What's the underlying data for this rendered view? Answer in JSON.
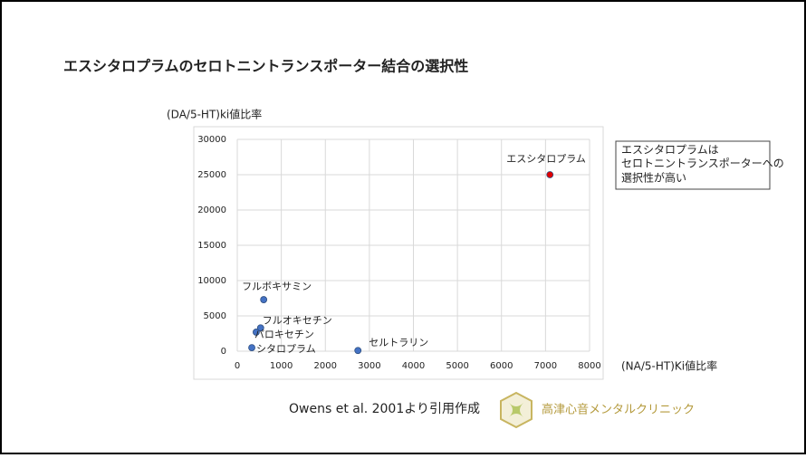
{
  "chart_data": {
    "type": "scatter",
    "title": "エスシタロプラムのセロトニントランスポーター結合の選択性",
    "y_label": "(DA/5-HT)ki値比率",
    "x_label": "(NA/5-HT)Ki値比率",
    "x": [
      7100,
      600,
      530,
      430,
      330,
      2740
    ],
    "values": [
      25000,
      7300,
      3300,
      2700,
      500,
      100
    ],
    "point_labels": [
      "エスシタロプラム",
      "フルボキサミン",
      "フルオキセチン",
      "パロキセチン",
      "シタロプラム",
      "セルトラリン"
    ],
    "colors": [
      "#e00000",
      "#4472c4",
      "#4472c4",
      "#4472c4",
      "#4472c4",
      "#4472c4"
    ],
    "xlim": [
      0,
      8000
    ],
    "xticks": [
      0,
      1000,
      2000,
      3000,
      4000,
      5000,
      6000,
      7000,
      8000
    ],
    "ylim": [
      0,
      30000
    ],
    "yticks": [
      0,
      5000,
      10000,
      15000,
      20000,
      25000,
      30000
    ],
    "grid": true,
    "annotation": [
      "エスシタロプラムは",
      "セロトニントランスポーターへの",
      "選択性が高い"
    ],
    "source": "Owens et al. 2001より引用作成",
    "logo_text": "高津心音メンタルクリニック"
  }
}
